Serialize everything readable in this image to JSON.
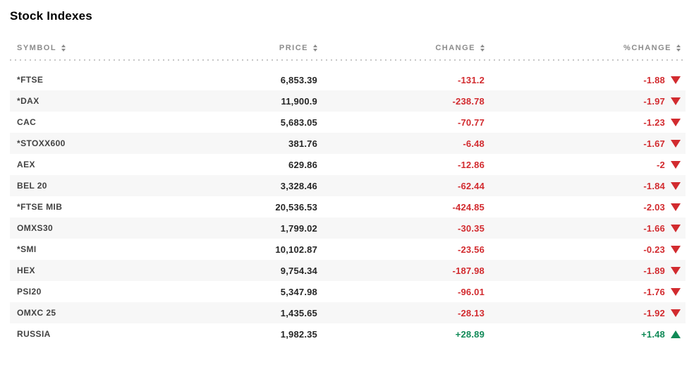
{
  "title": "Stock Indexes",
  "colors": {
    "negative": "#d22b2f",
    "positive": "#108a57",
    "header_text": "#8c8c8c",
    "row_stripe": "#f7f7f7"
  },
  "table": {
    "columns": [
      {
        "key": "symbol",
        "label": "SYMBOL"
      },
      {
        "key": "price",
        "label": "PRICE"
      },
      {
        "key": "change",
        "label": "CHANGE"
      },
      {
        "key": "pct_change",
        "label": "%CHANGE"
      }
    ],
    "rows": [
      {
        "symbol": "*FTSE",
        "price": "6,853.39",
        "change": "-131.2",
        "pct_change": "-1.88",
        "direction": "down"
      },
      {
        "symbol": "*DAX",
        "price": "11,900.9",
        "change": "-238.78",
        "pct_change": "-1.97",
        "direction": "down"
      },
      {
        "symbol": "CAC",
        "price": "5,683.05",
        "change": "-70.77",
        "pct_change": "-1.23",
        "direction": "down"
      },
      {
        "symbol": "*STOXX600",
        "price": "381.76",
        "change": "-6.48",
        "pct_change": "-1.67",
        "direction": "down"
      },
      {
        "symbol": "AEX",
        "price": "629.86",
        "change": "-12.86",
        "pct_change": "-2",
        "direction": "down"
      },
      {
        "symbol": "BEL 20",
        "price": "3,328.46",
        "change": "-62.44",
        "pct_change": "-1.84",
        "direction": "down"
      },
      {
        "symbol": "*FTSE MIB",
        "price": "20,536.53",
        "change": "-424.85",
        "pct_change": "-2.03",
        "direction": "down"
      },
      {
        "symbol": "OMXS30",
        "price": "1,799.02",
        "change": "-30.35",
        "pct_change": "-1.66",
        "direction": "down"
      },
      {
        "symbol": "*SMI",
        "price": "10,102.87",
        "change": "-23.56",
        "pct_change": "-0.23",
        "direction": "down"
      },
      {
        "symbol": "HEX",
        "price": "9,754.34",
        "change": "-187.98",
        "pct_change": "-1.89",
        "direction": "down"
      },
      {
        "symbol": "PSI20",
        "price": "5,347.98",
        "change": "-96.01",
        "pct_change": "-1.76",
        "direction": "down"
      },
      {
        "symbol": "OMXC 25",
        "price": "1,435.65",
        "change": "-28.13",
        "pct_change": "-1.92",
        "direction": "down"
      },
      {
        "symbol": "RUSSIA",
        "price": "1,982.35",
        "change": "+28.89",
        "pct_change": "+1.48",
        "direction": "up"
      }
    ]
  }
}
